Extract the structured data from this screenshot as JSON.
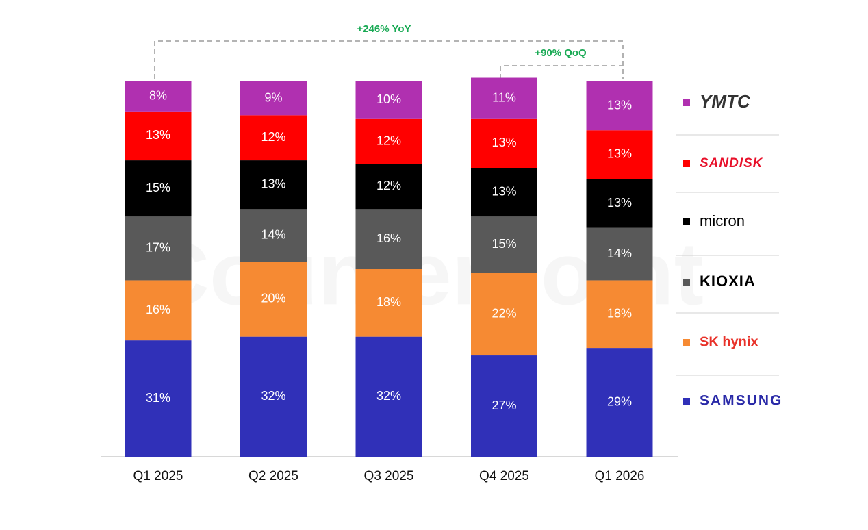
{
  "chart_data": {
    "type": "stacked_bar",
    "watermark": "Counterpoint",
    "categories": [
      "Q1 2025",
      "Q2 2025",
      "Q3 2025",
      "Q4 2025",
      "Q1 2026"
    ],
    "ylim": [
      0,
      100
    ],
    "series": [
      {
        "name": "SAMSUNG",
        "color": "#3030b8",
        "values": [
          31,
          32,
          32,
          27,
          29
        ],
        "value_labels": [
          "31%",
          "32%",
          "32%",
          "27%",
          "29%"
        ]
      },
      {
        "name": "SK hynix",
        "color": "#f68a33",
        "values": [
          16,
          20,
          18,
          22,
          18
        ],
        "value_labels": [
          "16%",
          "20%",
          "18%",
          "22%",
          "18%"
        ]
      },
      {
        "name": "KIOXIA",
        "color": "#595959",
        "values": [
          17,
          14,
          16,
          15,
          14
        ],
        "value_labels": [
          "17%",
          "14%",
          "16%",
          "15%",
          "14%"
        ]
      },
      {
        "name": "micron",
        "color": "#000000",
        "values": [
          15,
          13,
          12,
          13,
          13
        ],
        "value_labels": [
          "15%",
          "13%",
          "12%",
          "13%",
          "13%"
        ]
      },
      {
        "name": "SANDISK",
        "color": "#ff0000",
        "values": [
          13,
          12,
          12,
          13,
          13
        ],
        "value_labels": [
          "13%",
          "12%",
          "12%",
          "13%",
          "13%"
        ]
      },
      {
        "name": "YMTC",
        "color": "#b030b0",
        "values": [
          8,
          9,
          10,
          11,
          13
        ],
        "value_labels": [
          "8%",
          "9%",
          "10%",
          "11%",
          "13%"
        ]
      }
    ],
    "legend": "right",
    "annotations": [
      "+246% YoY",
      "+90% QoQ"
    ]
  }
}
